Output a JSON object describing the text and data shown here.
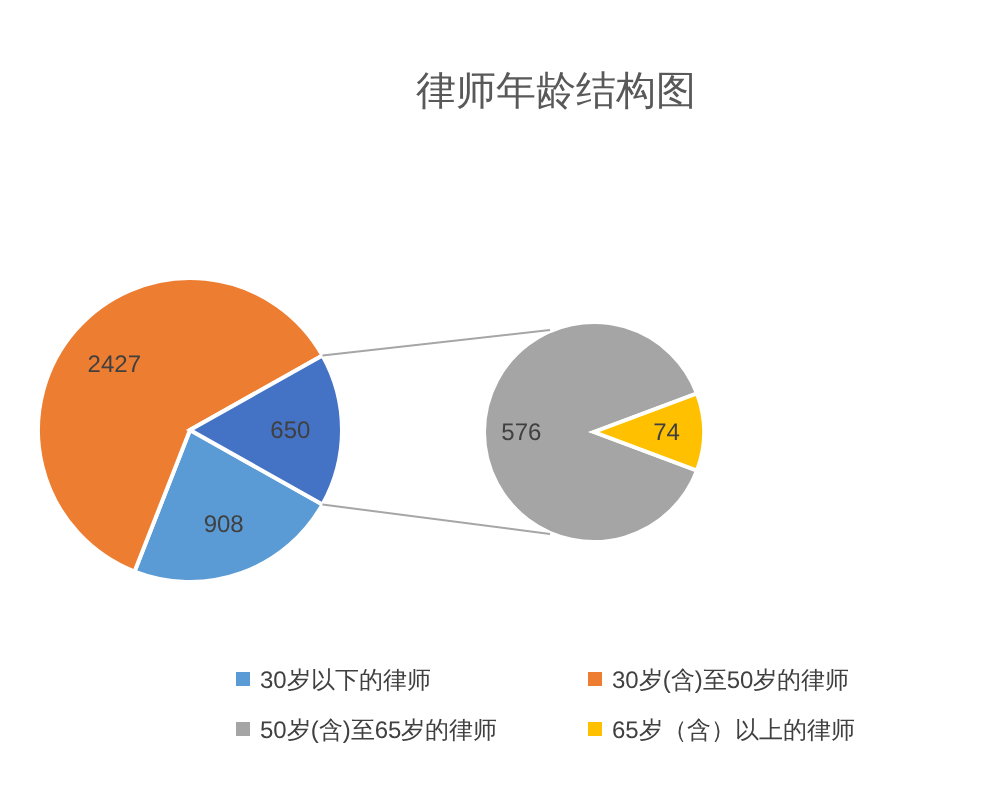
{
  "chart_data": [
    {
      "type": "pie",
      "title": "律师年龄结构图",
      "categories": [
        "30岁以下的律师",
        "30岁(含)至50岁的律师",
        null
      ],
      "values": [
        908,
        2427,
        650
      ],
      "colors": [
        "#5b9bd5",
        "#ed7d31",
        "#4472c4"
      ],
      "data_labels": true,
      "legend": "bottom"
    },
    {
      "type": "pie",
      "categories": [
        "50岁(含)至65岁的律师",
        "65岁（含）以上的律师"
      ],
      "values": [
        576,
        74
      ],
      "colors": [
        "#a5a5a5",
        "#ffc000"
      ],
      "data_labels": true,
      "legend": "bottom"
    }
  ]
}
